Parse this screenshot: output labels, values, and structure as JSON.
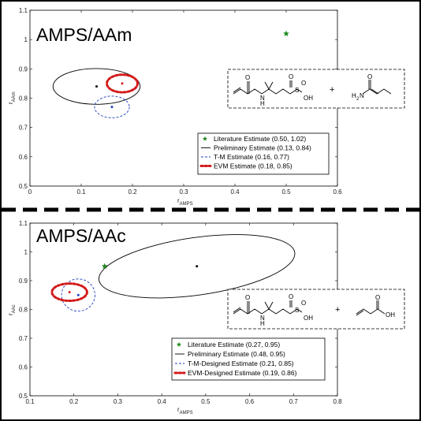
{
  "divider_color": "#000000",
  "chart_data": [
    {
      "type": "scatter",
      "title": "AMPS/AAm",
      "xlabel_main": "r",
      "xlabel_sub": "AMPS",
      "ylabel_main": "r",
      "ylabel_sub": "AAm",
      "xlim": [
        0,
        0.6
      ],
      "ylim": [
        0.5,
        1.1
      ],
      "xticks": [
        "0",
        "0.1",
        "0.2",
        "0.3",
        "0.4",
        "0.5",
        "0.6"
      ],
      "yticks": [
        "0.5",
        "0.6",
        "0.7",
        "0.8",
        "0.9",
        "1",
        "1.1"
      ],
      "grid": false,
      "legend_position": "lower-right",
      "series": [
        {
          "name": "Literature Estimate (0.50, 1.02)",
          "marker": "star",
          "color": "#228b22",
          "x": 0.5,
          "y": 1.02
        },
        {
          "name": "Preliminary Estimate (0.13, 0.84)",
          "marker": "dot",
          "color": "#000000",
          "x": 0.13,
          "y": 0.84,
          "region": {
            "rx": 0.085,
            "ry": 0.061,
            "style": "solid"
          }
        },
        {
          "name": "T-M Estimate (0.16, 0.77)",
          "marker": "dot",
          "color": "#1f3fbf",
          "x": 0.16,
          "y": 0.77,
          "region": {
            "rx": 0.034,
            "ry": 0.037,
            "style": "dashed"
          }
        },
        {
          "name": "EVM Estimate (0.18, 0.85)",
          "marker": "dot",
          "color": "#d41a1a",
          "x": 0.18,
          "y": 0.85,
          "region": {
            "rx": 0.03,
            "ry": 0.03,
            "style": "dotted"
          }
        }
      ],
      "annotation": {
        "left_molecule": {
          "atoms": [
            "O",
            "N",
            "H",
            "O",
            "S",
            "O",
            "OH"
          ]
        },
        "plus": "+",
        "right_molecule": {
          "atoms": [
            "O",
            "H",
            "2",
            "N"
          ]
        }
      }
    },
    {
      "type": "scatter",
      "title": "AMPS/AAc",
      "xlabel_main": "r",
      "xlabel_sub": "AMPS",
      "ylabel_main": "r",
      "ylabel_sub": "AAc",
      "xlim": [
        0.1,
        0.8
      ],
      "ylim": [
        0.5,
        1.1
      ],
      "xticks": [
        "0.1",
        "0.2",
        "0.3",
        "0.4",
        "0.5",
        "0.6",
        "0.7",
        "0.8"
      ],
      "yticks": [
        "0.5",
        "0.6",
        "0.7",
        "0.8",
        "0.9",
        "1",
        "1.1"
      ],
      "grid": false,
      "legend_position": "lower-right",
      "series": [
        {
          "name": "Literature Estimate (0.27, 0.95)",
          "marker": "star",
          "color": "#228b22",
          "x": 0.27,
          "y": 0.95
        },
        {
          "name": "Preliminary Estimate (0.48, 0.95)",
          "marker": "dot",
          "color": "#000000",
          "x": 0.48,
          "y": 0.95,
          "region": {
            "rx": 0.225,
            "ry": 0.1,
            "style": "solid",
            "angle": -8
          }
        },
        {
          "name": "T-M-Designed Estimate (0.21, 0.85)",
          "marker": "dot",
          "color": "#1f3fbf",
          "x": 0.21,
          "y": 0.85,
          "region": {
            "rx": 0.038,
            "ry": 0.056,
            "style": "dashed"
          }
        },
        {
          "name": "EVM-Designed Estimate (0.19, 0.86)",
          "marker": "dot",
          "color": "#d41a1a",
          "x": 0.19,
          "y": 0.86,
          "region": {
            "rx": 0.04,
            "ry": 0.03,
            "style": "dotted"
          }
        }
      ],
      "annotation": {
        "left_molecule": {
          "atoms": [
            "O",
            "N",
            "H",
            "O",
            "S",
            "O",
            "OH"
          ]
        },
        "plus": "+",
        "right_molecule": {
          "atoms": [
            "O",
            "OH"
          ]
        }
      }
    }
  ]
}
